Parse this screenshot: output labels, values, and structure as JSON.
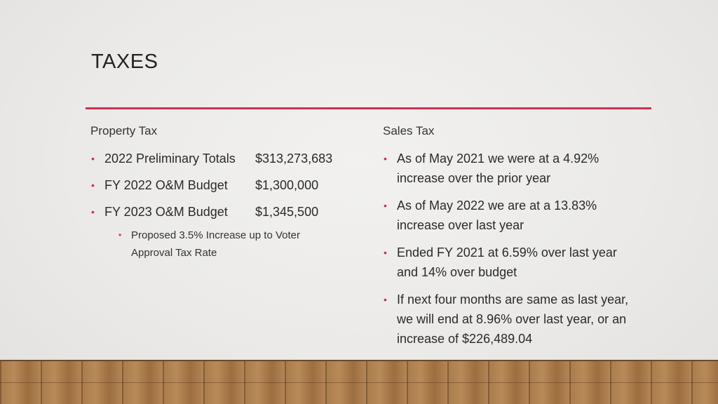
{
  "slide": {
    "title": "TAXES",
    "accent_color": "#c8324e"
  },
  "property_tax": {
    "heading": "Property Tax",
    "items": [
      {
        "label": "2022 Preliminary Totals",
        "amount": "$313,273,683"
      },
      {
        "label": "FY 2022 O&M Budget",
        "amount": "$1,300,000"
      },
      {
        "label": "FY 2023 O&M Budget",
        "amount": "$1,345,500"
      }
    ],
    "sub_items": [
      {
        "line1": "Proposed 3.5% Increase up to Voter",
        "line2": "Approval Tax Rate"
      }
    ]
  },
  "sales_tax": {
    "heading": "Sales Tax",
    "items": [
      {
        "lines": [
          "As of May 2021 we were at a 4.92%",
          "increase over the prior year"
        ]
      },
      {
        "lines": [
          "As of May 2022 we are at a 13.83%",
          "increase over last year"
        ]
      },
      {
        "lines": [
          "Ended FY 2021 at 6.59% over last year",
          "and 14% over budget"
        ]
      },
      {
        "lines": [
          "If next four months are same as last year,",
          "we will end at 8.96% over last year, or an",
          "increase of $226,489.04"
        ]
      }
    ]
  }
}
